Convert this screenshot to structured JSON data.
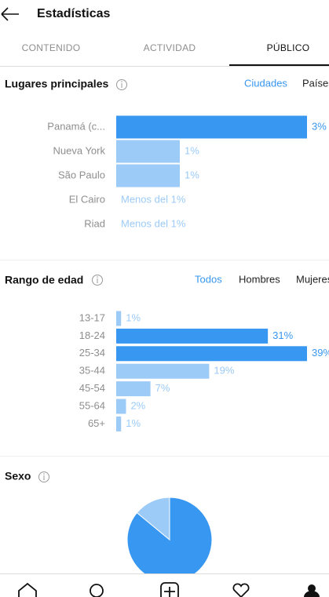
{
  "header": {
    "title": "Estadísticas"
  },
  "tabs": [
    "CONTENIDO",
    "ACTIVIDAD",
    "PÚBLICO"
  ],
  "locations": {
    "title": "Lugares principales",
    "filters": [
      "Ciudades",
      "Países"
    ],
    "chart_data": {
      "type": "bar",
      "categories": [
        "Panamá (c...",
        "Nueva York",
        "São Paulo",
        "El Cairo",
        "Riad"
      ],
      "values": [
        3,
        1,
        1,
        null,
        null
      ],
      "value_labels": [
        "3%",
        "1%",
        "1%",
        "Menos del 1%",
        "Menos del 1%"
      ],
      "colors": [
        "#3897f0",
        "#9ccbf8",
        "#9ccbf8",
        "#9ccbf8",
        "#9ccbf8"
      ]
    }
  },
  "age": {
    "title": "Rango de edad",
    "filters": [
      "Todos",
      "Hombres",
      "Mujeres"
    ],
    "chart_data": {
      "type": "bar",
      "categories": [
        "13-17",
        "18-24",
        "25-34",
        "35-44",
        "45-54",
        "55-64",
        "65+"
      ],
      "values": [
        1,
        31,
        39,
        19,
        7,
        2,
        1
      ],
      "value_labels": [
        "1%",
        "31%",
        "39%",
        "19%",
        "7%",
        "2%",
        "1%"
      ],
      "colors": [
        "#9ccbf8",
        "#3897f0",
        "#3897f0",
        "#9ccbf8",
        "#9ccbf8",
        "#9ccbf8",
        "#9ccbf8"
      ]
    }
  },
  "gender": {
    "title": "Sexo",
    "chart_data": {
      "type": "pie",
      "values": [
        86,
        14
      ],
      "colors": [
        "#3897f0",
        "#9ccbf8"
      ]
    }
  }
}
